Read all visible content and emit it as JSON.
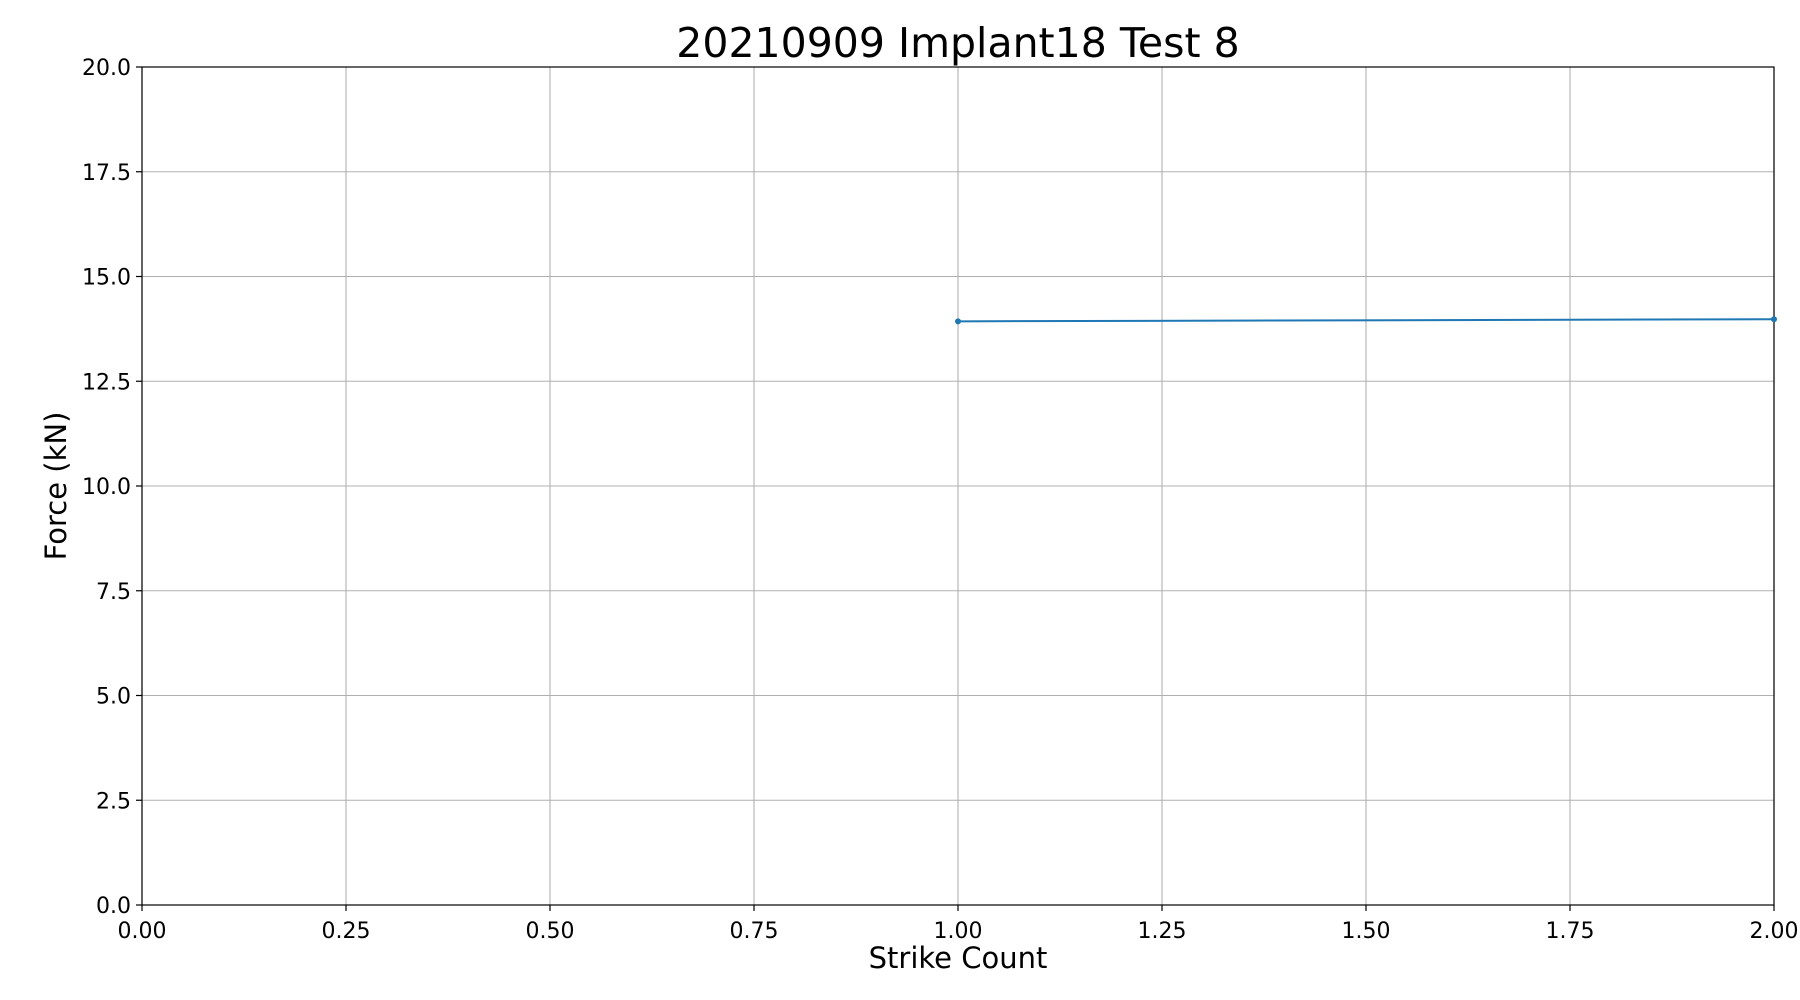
{
  "chart_data": {
    "type": "line",
    "title": "20210909 Implant18 Test 8",
    "xlabel": "Strike Count",
    "ylabel": "Force (kN)",
    "xlim": [
      0,
      2
    ],
    "ylim": [
      0,
      20
    ],
    "x_ticks": [
      "0.00",
      "0.25",
      "0.50",
      "0.75",
      "1.00",
      "1.25",
      "1.50",
      "1.75",
      "2.00"
    ],
    "y_ticks": [
      "0.0",
      "2.5",
      "5.0",
      "7.5",
      "10.0",
      "12.5",
      "15.0",
      "17.5",
      "20.0"
    ],
    "grid": true,
    "series": [
      {
        "x": [
          1,
          2
        ],
        "y": [
          13.93,
          13.98
        ],
        "color": "#1f77b4",
        "marker": "dot"
      }
    ]
  }
}
